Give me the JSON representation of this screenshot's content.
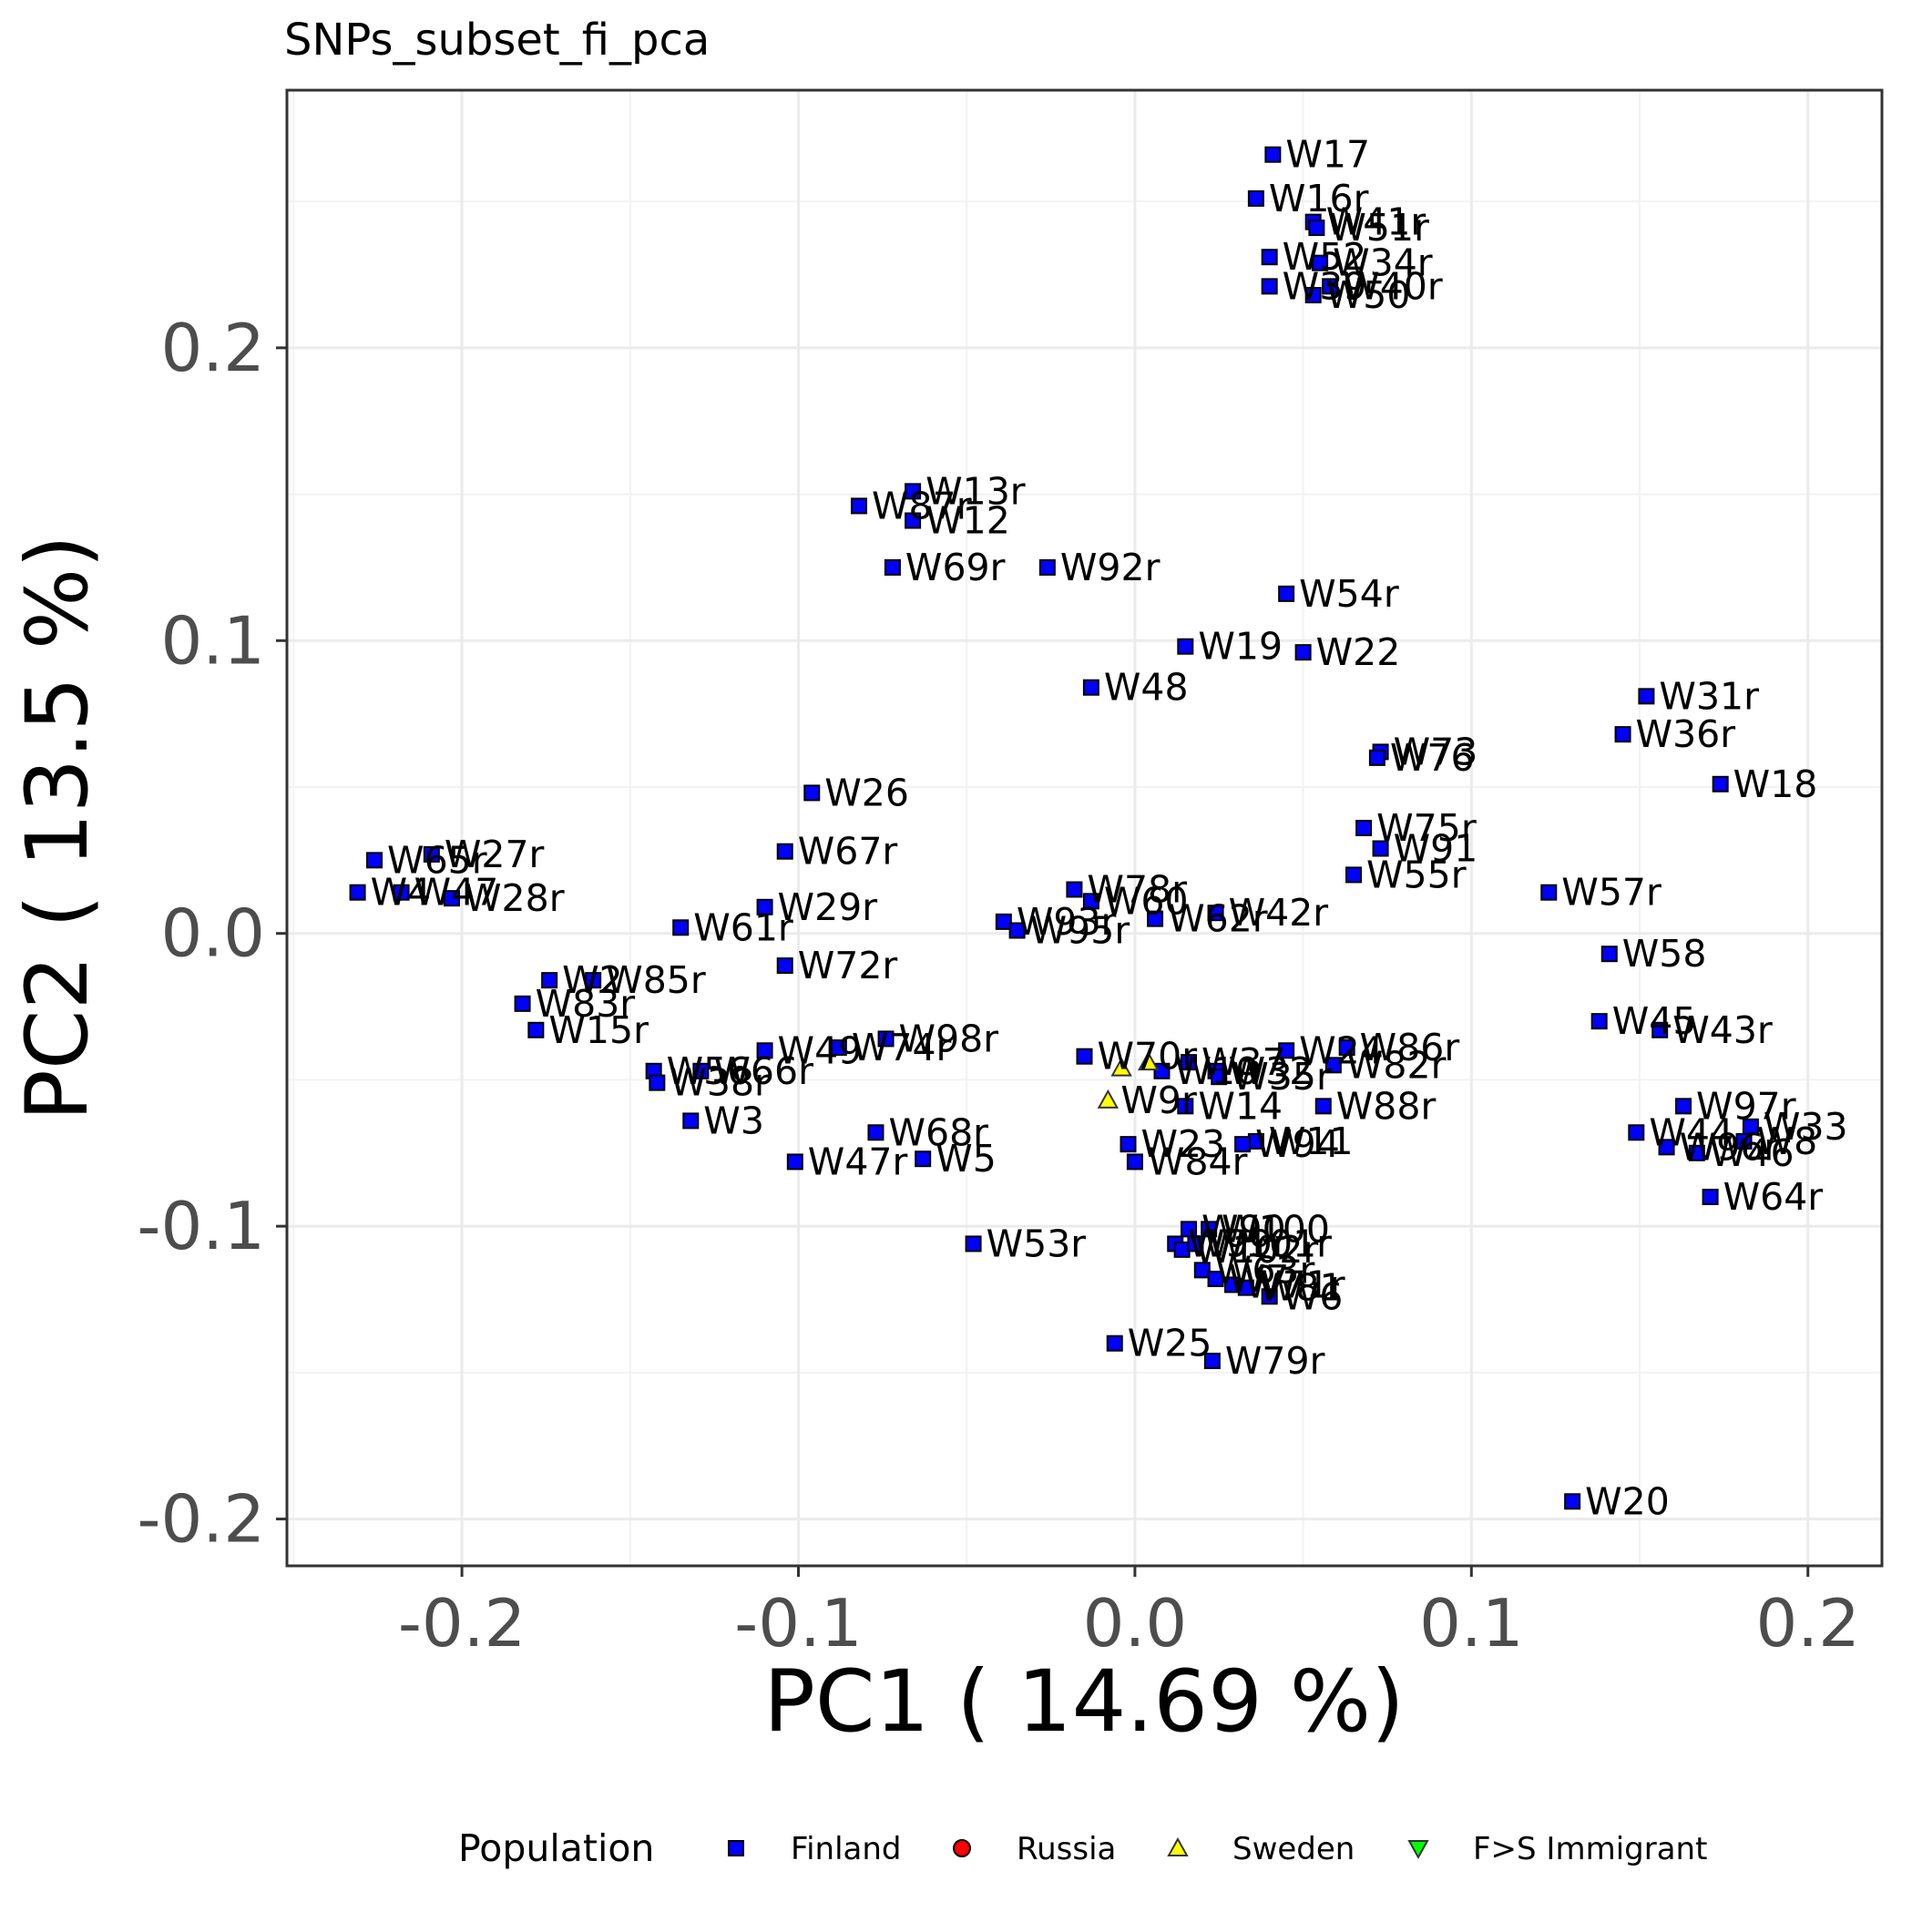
{
  "chart_data": {
    "type": "scatter",
    "title": "SNPs_subset_fi_pca",
    "xlabel": "PC1 ( 14.69 %)",
    "ylabel": "PC2 ( 13.5 %)",
    "xlim": [
      -0.252,
      0.222
    ],
    "ylim": [
      -0.216,
      0.288
    ],
    "xticks": [
      -0.2,
      -0.1,
      0.0,
      0.1,
      0.2
    ],
    "xtick_labels": [
      "-0.2",
      "-0.1",
      "0.0",
      "0.1",
      "0.2"
    ],
    "yticks": [
      -0.2,
      -0.1,
      0.0,
      0.1,
      0.2
    ],
    "ytick_labels": [
      "-0.2",
      "-0.1",
      "0.0",
      "0.1",
      "0.2"
    ],
    "grid": true,
    "legend": {
      "title": "Population",
      "position": "bottom",
      "entries": [
        {
          "name": "Finland",
          "shape": "square",
          "color": "#0000ff"
        },
        {
          "name": "Russia",
          "shape": "circle",
          "color": "#ff0000"
        },
        {
          "name": "Sweden",
          "shape": "triangle-up",
          "color": "#ffff00"
        },
        {
          "name": "F>S Immigrant",
          "shape": "triangle-down",
          "color": "#00ff00"
        }
      ]
    },
    "series": [
      {
        "name": "Finland",
        "points": [
          {
            "label": "W17",
            "x": 0.041,
            "y": 0.266
          },
          {
            "label": "W16r",
            "x": 0.036,
            "y": 0.251
          },
          {
            "label": "W41r",
            "x": 0.053,
            "y": 0.243
          },
          {
            "label": "W51r",
            "x": 0.054,
            "y": 0.241
          },
          {
            "label": "W52",
            "x": 0.04,
            "y": 0.231
          },
          {
            "label": "W34r",
            "x": 0.055,
            "y": 0.229
          },
          {
            "label": "W39",
            "x": 0.04,
            "y": 0.221
          },
          {
            "label": "W40r",
            "x": 0.058,
            "y": 0.221
          },
          {
            "label": "W50",
            "x": 0.053,
            "y": 0.218
          },
          {
            "label": "W13r",
            "x": -0.066,
            "y": 0.151
          },
          {
            "label": "W87r",
            "x": -0.082,
            "y": 0.146
          },
          {
            "label": "W12",
            "x": -0.066,
            "y": 0.141
          },
          {
            "label": "W69r",
            "x": -0.072,
            "y": 0.125
          },
          {
            "label": "W92r",
            "x": -0.026,
            "y": 0.125
          },
          {
            "label": "W54r",
            "x": 0.045,
            "y": 0.116
          },
          {
            "label": "W19",
            "x": 0.015,
            "y": 0.098
          },
          {
            "label": "W22",
            "x": 0.05,
            "y": 0.096
          },
          {
            "label": "W48",
            "x": -0.013,
            "y": 0.084
          },
          {
            "label": "W31r",
            "x": 0.152,
            "y": 0.081
          },
          {
            "label": "W36r",
            "x": 0.145,
            "y": 0.068
          },
          {
            "label": "W73",
            "x": 0.073,
            "y": 0.062
          },
          {
            "label": "W76",
            "x": 0.072,
            "y": 0.06
          },
          {
            "label": "W18",
            "x": 0.174,
            "y": 0.051
          },
          {
            "label": "W26",
            "x": -0.096,
            "y": 0.048
          },
          {
            "label": "W75r",
            "x": 0.068,
            "y": 0.036
          },
          {
            "label": "W91",
            "x": 0.073,
            "y": 0.029
          },
          {
            "label": "W55r",
            "x": 0.065,
            "y": 0.02
          },
          {
            "label": "W57r",
            "x": 0.123,
            "y": 0.014
          },
          {
            "label": "W67r",
            "x": -0.104,
            "y": 0.028
          },
          {
            "label": "W65r",
            "x": -0.226,
            "y": 0.025
          },
          {
            "label": "W27r",
            "x": -0.209,
            "y": 0.027
          },
          {
            "label": "W4",
            "x": -0.231,
            "y": 0.014
          },
          {
            "label": "W47",
            "x": -0.218,
            "y": 0.014
          },
          {
            "label": "W28r",
            "x": -0.203,
            "y": 0.012
          },
          {
            "label": "W29r",
            "x": -0.11,
            "y": 0.009
          },
          {
            "label": "W61r",
            "x": -0.135,
            "y": 0.002
          },
          {
            "label": "W78r",
            "x": -0.018,
            "y": 0.015
          },
          {
            "label": "W60",
            "x": -0.013,
            "y": 0.011
          },
          {
            "label": "W93r",
            "x": -0.039,
            "y": 0.004
          },
          {
            "label": "W95r",
            "x": -0.035,
            "y": 0.001
          },
          {
            "label": "W62r",
            "x": 0.006,
            "y": 0.005
          },
          {
            "label": "W42r",
            "x": 0.024,
            "y": 0.007
          },
          {
            "label": "W58",
            "x": 0.141,
            "y": -0.007
          },
          {
            "label": "W72r",
            "x": -0.104,
            "y": -0.011
          },
          {
            "label": "W2",
            "x": -0.174,
            "y": -0.016
          },
          {
            "label": "W85r",
            "x": -0.161,
            "y": -0.016
          },
          {
            "label": "W83r",
            "x": -0.182,
            "y": -0.024
          },
          {
            "label": "W15r",
            "x": -0.178,
            "y": -0.033
          },
          {
            "label": "W45",
            "x": 0.138,
            "y": -0.03
          },
          {
            "label": "W43r",
            "x": 0.156,
            "y": -0.033
          },
          {
            "label": "W49",
            "x": -0.11,
            "y": -0.04
          },
          {
            "label": "W74r",
            "x": -0.088,
            "y": -0.039
          },
          {
            "label": "W98r",
            "x": -0.074,
            "y": -0.036
          },
          {
            "label": "W56",
            "x": -0.143,
            "y": -0.047
          },
          {
            "label": "W66r",
            "x": -0.129,
            "y": -0.047
          },
          {
            "label": "W38r",
            "x": -0.142,
            "y": -0.051
          },
          {
            "label": "W3",
            "x": -0.132,
            "y": -0.064
          },
          {
            "label": "W70r",
            "x": -0.015,
            "y": -0.042
          },
          {
            "label": "W10",
            "x": 0.008,
            "y": -0.047
          },
          {
            "label": "W37",
            "x": 0.016,
            "y": -0.044
          },
          {
            "label": "W32",
            "x": 0.024,
            "y": -0.047
          },
          {
            "label": "W35r",
            "x": 0.025,
            "y": -0.049
          },
          {
            "label": "W24",
            "x": 0.045,
            "y": -0.04
          },
          {
            "label": "W86r",
            "x": 0.063,
            "y": -0.039
          },
          {
            "label": "W82r",
            "x": 0.059,
            "y": -0.045
          },
          {
            "label": "W88r",
            "x": 0.056,
            "y": -0.059
          },
          {
            "label": "W14",
            "x": 0.015,
            "y": -0.059
          },
          {
            "label": "W11",
            "x": 0.036,
            "y": -0.071
          },
          {
            "label": "W94",
            "x": 0.032,
            "y": -0.072
          },
          {
            "label": "W23",
            "x": -0.002,
            "y": -0.072
          },
          {
            "label": "W84r",
            "x": 0.0,
            "y": -0.078
          },
          {
            "label": "W68r",
            "x": -0.077,
            "y": -0.068
          },
          {
            "label": "W5",
            "x": -0.063,
            "y": -0.077
          },
          {
            "label": "W47r",
            "x": -0.101,
            "y": -0.078
          },
          {
            "label": "W97r",
            "x": 0.163,
            "y": -0.059
          },
          {
            "label": "W33",
            "x": 0.183,
            "y": -0.066
          },
          {
            "label": "W44",
            "x": 0.149,
            "y": -0.068
          },
          {
            "label": "W96r",
            "x": 0.158,
            "y": -0.073
          },
          {
            "label": "W46",
            "x": 0.167,
            "y": -0.075
          },
          {
            "label": "W8",
            "x": 0.181,
            "y": -0.071
          },
          {
            "label": "W64r",
            "x": 0.171,
            "y": -0.09
          },
          {
            "label": "W90",
            "x": 0.016,
            "y": -0.101
          },
          {
            "label": "W100",
            "x": 0.022,
            "y": -0.101
          },
          {
            "label": "W99r",
            "x": 0.012,
            "y": -0.106
          },
          {
            "label": "W102r",
            "x": 0.014,
            "y": -0.108
          },
          {
            "label": "W101r",
            "x": 0.018,
            "y": -0.106
          },
          {
            "label": "W53r",
            "x": -0.048,
            "y": -0.106
          },
          {
            "label": "W63r",
            "x": 0.02,
            "y": -0.115
          },
          {
            "label": "W7",
            "x": 0.024,
            "y": -0.118
          },
          {
            "label": "W71r",
            "x": 0.029,
            "y": -0.12
          },
          {
            "label": "W81",
            "x": 0.033,
            "y": -0.121
          },
          {
            "label": "W6",
            "x": 0.04,
            "y": -0.124
          },
          {
            "label": "W25",
            "x": -0.006,
            "y": -0.14
          },
          {
            "label": "W79r",
            "x": 0.023,
            "y": -0.146
          },
          {
            "label": "W20",
            "x": 0.13,
            "y": -0.194
          }
        ]
      },
      {
        "name": "Sweden",
        "points": [
          {
            "label": "W9r",
            "x": -0.008,
            "y": -0.057
          },
          {
            "label": "",
            "x": -0.004,
            "y": -0.046
          },
          {
            "label": "",
            "x": 0.004,
            "y": -0.044
          }
        ]
      }
    ]
  }
}
